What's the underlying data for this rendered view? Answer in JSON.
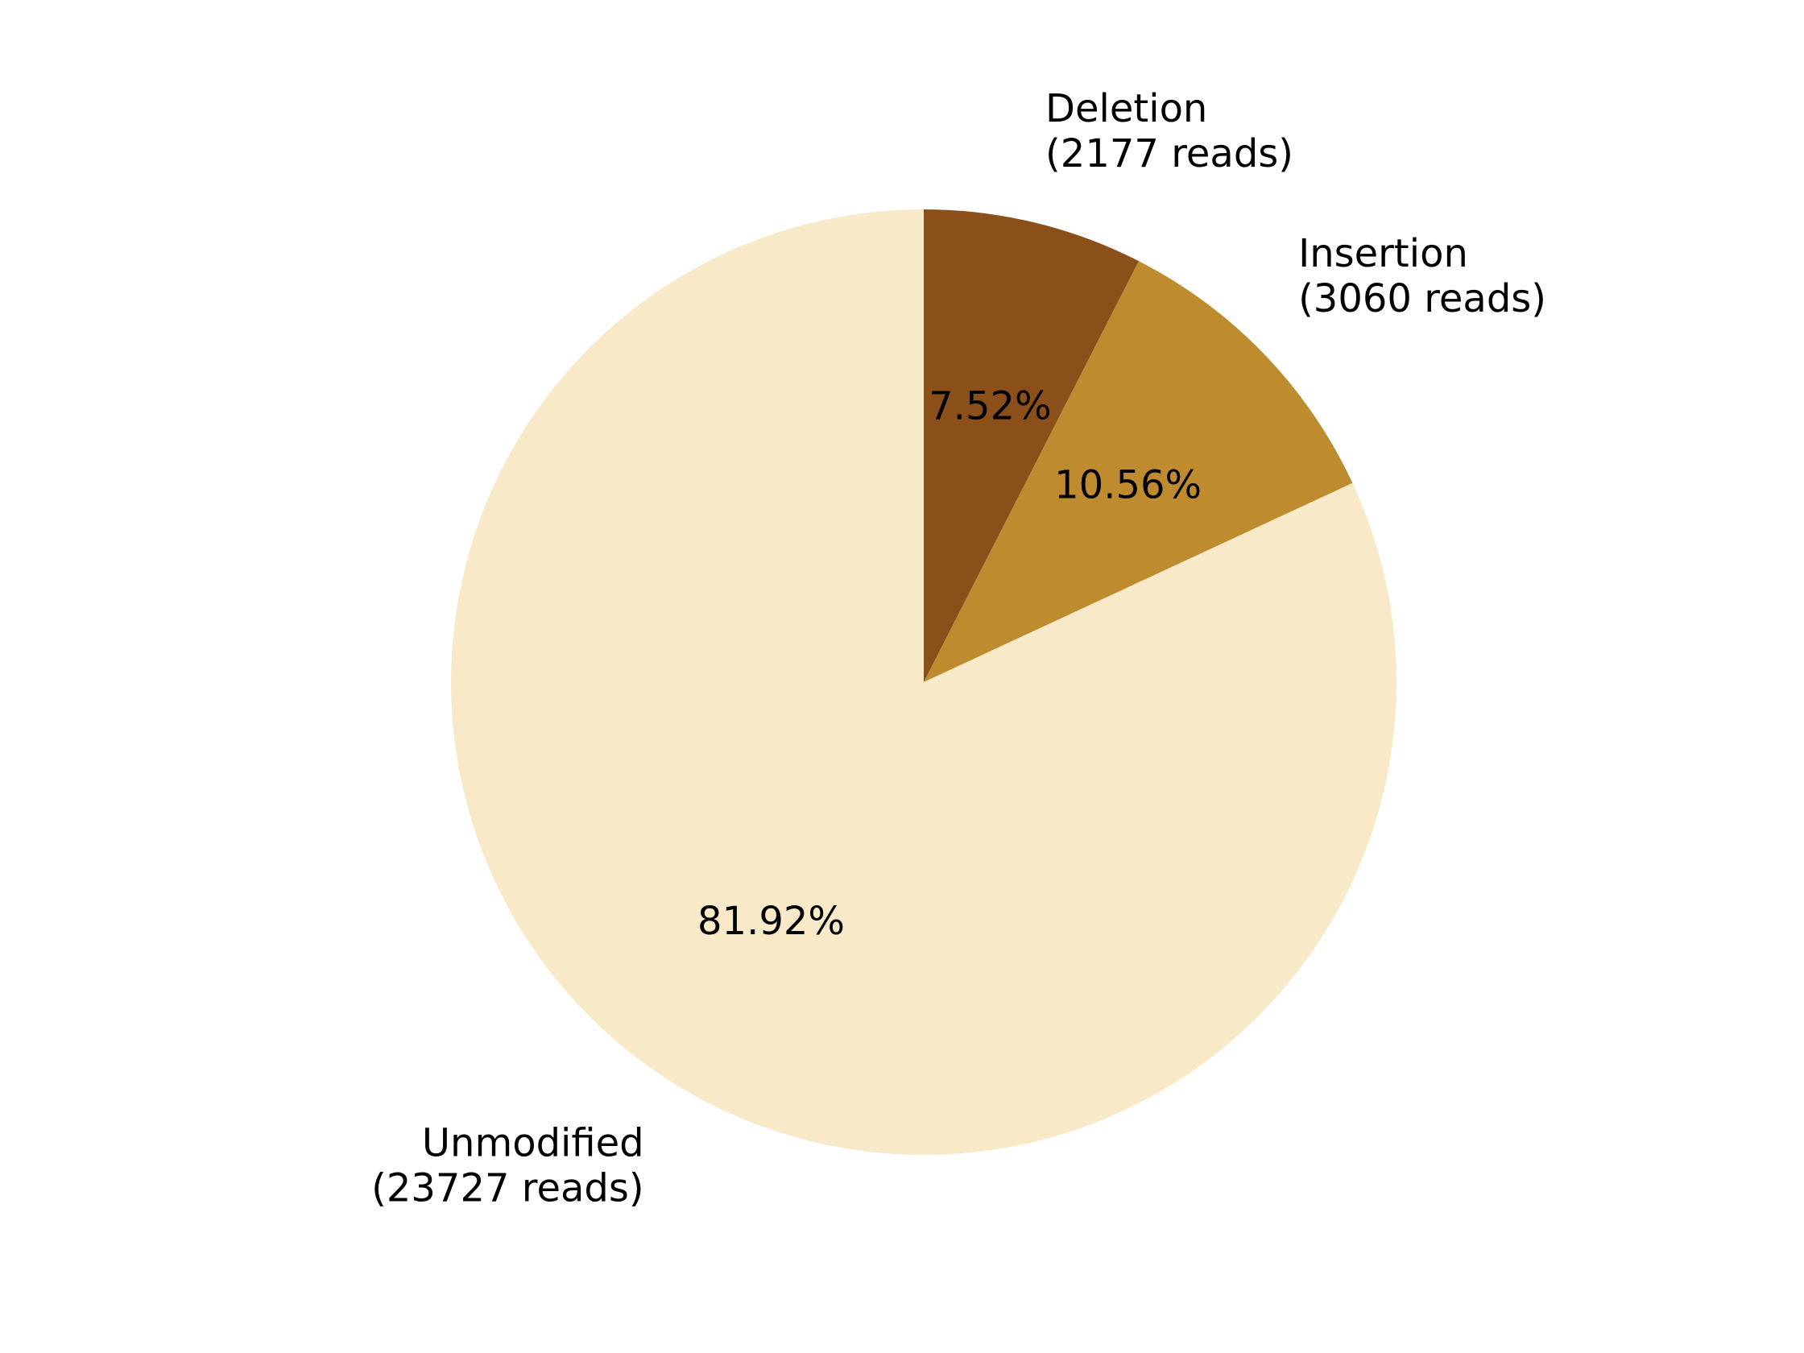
{
  "chart_data": {
    "type": "pie",
    "start_angle": "top",
    "direction": "clockwise",
    "slices": [
      {
        "name": "Deletion",
        "reads_label": "(2177 reads)",
        "reads": 2177,
        "percent_label": "7.52%",
        "percent": 7.52,
        "color": "#8b4f1a"
      },
      {
        "name": "Insertion",
        "reads_label": "(3060 reads)",
        "reads": 3060,
        "percent_label": "10.56%",
        "percent": 10.56,
        "color": "#bf8b2f"
      },
      {
        "name": "Unmodified",
        "reads_label": "(23727 reads)",
        "reads": 23727,
        "percent_label": "81.92%",
        "percent": 81.92,
        "color": "#f8e9c9"
      }
    ]
  }
}
